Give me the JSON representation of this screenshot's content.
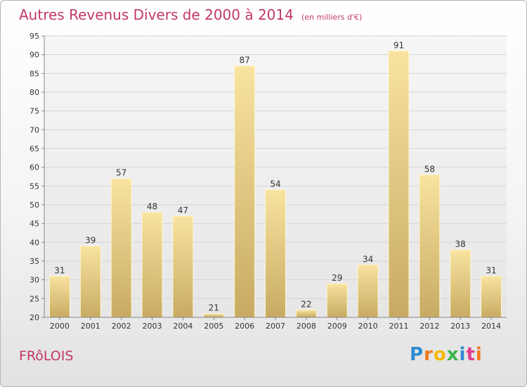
{
  "title": "Autres Revenus Divers de 2000 à 2014",
  "unit": "(en milliers d'€)",
  "commune": "FRôLOIS",
  "logo": {
    "letters": [
      "P",
      "r",
      "o",
      "x",
      "i",
      "t",
      "i"
    ],
    "colors": [
      "#2e8bd0",
      "#f07a1c",
      "#f5b800",
      "#3bb54a",
      "#2e8bd0",
      "#e23c8c",
      "#f07a1c"
    ]
  },
  "colors": {
    "accent": "#c2386b",
    "bar_light": "#f8e3a0",
    "bar_dark": "#c8ab62"
  },
  "chart_data": {
    "type": "bar",
    "categories": [
      "2000",
      "2001",
      "2002",
      "2003",
      "2004",
      "2005",
      "2006",
      "2007",
      "2008",
      "2009",
      "2010",
      "2011",
      "2012",
      "2013",
      "2014"
    ],
    "values": [
      31,
      39,
      57,
      48,
      47,
      21,
      87,
      54,
      22,
      29,
      34,
      91,
      58,
      38,
      31
    ],
    "ylim": [
      20,
      95
    ],
    "yticks": [
      20,
      25,
      30,
      35,
      40,
      45,
      50,
      55,
      60,
      65,
      70,
      75,
      80,
      85,
      90,
      95
    ],
    "xlabel": "",
    "ylabel": "",
    "grid": true,
    "legend": "none"
  }
}
